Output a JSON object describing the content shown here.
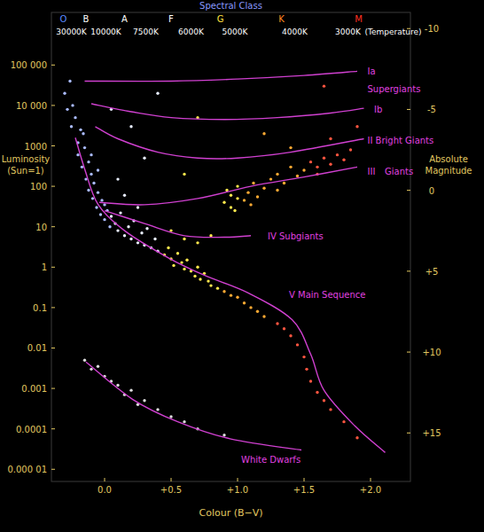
{
  "chart_data": {
    "type": "scatter",
    "x_label": "Colour (B−V)",
    "y_label": "Luminosity (Sun=1)",
    "y2_label": "Absolute Magnitude",
    "log": "y",
    "grid": false,
    "xlim": [
      -0.4,
      2.3
    ],
    "xticks": [
      {
        "value": 0,
        "label": "0.0"
      },
      {
        "value": 0.5,
        "label": "+0.5"
      },
      {
        "value": 1,
        "label": "+1.0"
      },
      {
        "value": 1.5,
        "label": "+1.5"
      },
      {
        "value": 2,
        "label": "+2.0"
      }
    ],
    "ylim": [
      5e-06,
      2000000
    ],
    "yticks": [
      {
        "value": 100000,
        "label": "100 000"
      },
      {
        "value": 10000,
        "label": "10 000"
      },
      1000,
      100,
      10,
      1,
      0.1,
      0.01,
      0.001,
      0.0001,
      {
        "value": 1e-05,
        "label": "0.000 01"
      }
    ],
    "y2lim": [
      18,
      -11
    ],
    "y2ticks": [
      -10,
      -5,
      0,
      {
        "value": 5,
        "label": "+5"
      },
      {
        "value": 10,
        "label": "+10"
      },
      {
        "value": 15,
        "label": "+15"
      }
    ],
    "top_axis": {
      "title": "Spectral Class",
      "classes": [
        {
          "value": -0.31,
          "label": "O",
          "color": "#5a8cff"
        },
        {
          "value": -0.14,
          "label": "B",
          "color": "#ffffff"
        },
        {
          "value": 0.15,
          "label": "A",
          "color": "#ffffff"
        },
        {
          "value": 0.5,
          "label": "F",
          "color": "#ffffff"
        },
        {
          "value": 0.87,
          "label": "G",
          "color": "#ffe040"
        },
        {
          "value": 1.33,
          "label": "K",
          "color": "#ff8a20"
        },
        {
          "value": 1.91,
          "label": "M",
          "color": "#ff3020"
        }
      ],
      "temperatures": [
        {
          "value": -0.25,
          "label": "30000K"
        },
        {
          "value": 0.01,
          "label": "10000K"
        },
        {
          "value": 0.31,
          "label": "7500K"
        },
        {
          "value": 0.65,
          "label": "6000K"
        },
        {
          "value": 0.98,
          "label": "5000K"
        },
        {
          "value": 1.43,
          "label": "4000K"
        },
        {
          "value": 1.83,
          "label": "3000K"
        }
      ],
      "note": {
        "value": 2.17,
        "label": "(Temperature)"
      }
    },
    "annotations": [
      {
        "text": "Supergiants",
        "x": 1.95,
        "y": 26000
      },
      {
        "text": "Giants",
        "x": 2.08,
        "y": 240
      }
    ],
    "series": [
      {
        "type": "scatter",
        "marker": "circle",
        "color": "#aabbff",
        "x": [
          -0.3,
          -0.28,
          -0.25,
          -0.22,
          -0.2,
          -0.2,
          -0.18,
          -0.17,
          -0.15,
          -0.14,
          -0.12,
          -0.12,
          -0.1,
          -0.09,
          -0.08,
          -0.06,
          -0.05,
          -0.03,
          -0.02,
          0.0,
          0.0,
          0.02,
          0.04,
          -0.16,
          -0.24,
          -0.1,
          -0.05,
          -0.26
        ],
        "values": [
          20000,
          8000,
          3000,
          5000,
          1200,
          600,
          2500,
          300,
          900,
          150,
          400,
          80,
          200,
          50,
          120,
          30,
          70,
          20,
          45,
          15,
          35,
          25,
          10,
          2000,
          10000,
          600,
          250,
          40000
        ]
      },
      {
        "type": "scatter",
        "marker": "circle",
        "color": "#e8eeff",
        "x": [
          0.05,
          0.08,
          0.1,
          0.12,
          0.15,
          0.18,
          0.2,
          0.22,
          0.25,
          0.28,
          0.3,
          0.32,
          0.35,
          0.38,
          0.4,
          0.15,
          0.25,
          0.1,
          0.3,
          0.2,
          0.05,
          0.4
        ],
        "values": [
          18,
          12,
          8,
          22,
          6,
          10,
          5,
          14,
          4,
          7,
          3.5,
          9,
          3,
          5,
          2.5,
          60,
          30,
          150,
          500,
          3000,
          8000,
          20000
        ]
      },
      {
        "type": "scatter",
        "marker": "circle",
        "color": "#ffe94d",
        "x": [
          0.45,
          0.48,
          0.5,
          0.52,
          0.55,
          0.58,
          0.6,
          0.62,
          0.65,
          0.68,
          0.7,
          0.72,
          0.75,
          0.78,
          0.8,
          0.85,
          0.5,
          0.6,
          0.7,
          0.8,
          0.9,
          0.95,
          0.95,
          1.0,
          0.92,
          1.0,
          0.98,
          0.6,
          0.7
        ],
        "values": [
          2,
          3,
          1.6,
          1.1,
          2.2,
          1.3,
          0.9,
          1.5,
          0.8,
          0.6,
          1.0,
          0.5,
          0.7,
          0.45,
          0.35,
          0.3,
          8,
          5,
          4,
          6,
          40,
          60,
          30,
          50,
          80,
          100,
          25,
          200,
          5000
        ]
      },
      {
        "type": "scatter",
        "marker": "circle",
        "color": "#ffaa33",
        "x": [
          0.9,
          0.95,
          1.0,
          1.05,
          1.1,
          1.15,
          1.2,
          1.05,
          1.08,
          1.1,
          1.12,
          1.15,
          1.2,
          1.25,
          1.3,
          1.3,
          1.35,
          1.4,
          1.45,
          1.5,
          1.2,
          1.4
        ],
        "values": [
          0.25,
          0.2,
          0.18,
          0.13,
          0.1,
          0.08,
          0.06,
          45,
          70,
          35,
          120,
          55,
          90,
          150,
          80,
          200,
          120,
          300,
          180,
          250,
          2000,
          900
        ]
      },
      {
        "type": "scatter",
        "marker": "circle",
        "color": "#ff5540",
        "x": [
          1.3,
          1.35,
          1.4,
          1.45,
          1.5,
          1.52,
          1.55,
          1.6,
          1.65,
          1.7,
          1.8,
          1.9,
          1.55,
          1.6,
          1.65,
          1.7,
          1.75,
          1.8,
          1.85,
          1.6,
          1.7,
          1.9,
          1.65
        ],
        "values": [
          0.04,
          0.03,
          0.02,
          0.012,
          0.006,
          0.003,
          0.0015,
          0.0008,
          0.0005,
          0.0003,
          0.00015,
          6e-05,
          400,
          300,
          500,
          350,
          600,
          450,
          800,
          200,
          1500,
          3000,
          30000
        ]
      },
      {
        "type": "scatter",
        "marker": "circle",
        "color": "#dddddd",
        "x": [
          -0.15,
          -0.1,
          -0.05,
          0.0,
          0.05,
          0.1,
          0.15,
          0.2,
          0.25,
          0.3,
          0.4,
          0.5,
          0.6,
          0.7,
          0.9
        ],
        "values": [
          0.005,
          0.003,
          0.0035,
          0.002,
          0.0015,
          0.0012,
          0.0007,
          0.0009,
          0.0004,
          0.0005,
          0.0003,
          0.0002,
          0.00015,
          0.0001,
          7e-05
        ]
      },
      {
        "type": "line",
        "line_style": "solid",
        "color": "#d040d0",
        "name": "Ia",
        "label_at": [
          1.95,
          70000
        ],
        "x": [
          -0.15,
          0.5,
          1.0,
          1.5,
          1.9
        ],
        "values": [
          40000,
          40000,
          45000,
          55000,
          70000
        ]
      },
      {
        "type": "line",
        "line_style": "solid",
        "color": "#d040d0",
        "name": "Ib",
        "label_at": [
          2.0,
          8000
        ],
        "x": [
          -0.1,
          0.2,
          0.5,
          0.9,
          1.3,
          1.7,
          1.95
        ],
        "values": [
          11000,
          7000,
          5000,
          4500,
          5000,
          6500,
          8500
        ]
      },
      {
        "type": "line",
        "line_style": "solid",
        "color": "#d040d0",
        "name": "II Bright Giants",
        "label_at": [
          1.95,
          1400
        ],
        "x": [
          -0.07,
          0.1,
          0.4,
          0.7,
          1.0,
          1.4,
          1.95
        ],
        "values": [
          3000,
          1500,
          700,
          500,
          500,
          700,
          1500
        ]
      },
      {
        "type": "line",
        "line_style": "solid",
        "color": "#d040d0",
        "name": "III",
        "label_at": [
          1.95,
          240
        ],
        "x": [
          -0.04,
          0.3,
          0.7,
          1.1,
          1.5,
          1.9
        ],
        "values": [
          40,
          35,
          50,
          100,
          170,
          300
        ]
      },
      {
        "type": "line",
        "line_style": "solid",
        "color": "#d040d0",
        "name": "IV Subgiants",
        "label_at": [
          1.2,
          6
        ],
        "x": [
          0.0,
          0.3,
          0.6,
          0.9,
          1.1
        ],
        "values": [
          25,
          12,
          6,
          5.5,
          6
        ]
      },
      {
        "type": "line",
        "line_style": "solid",
        "color": "#d040d0",
        "name": "V Main Sequence",
        "label_at": [
          1.36,
          0.21
        ],
        "x": [
          -0.22,
          -0.15,
          -0.05,
          0.15,
          0.48,
          0.75,
          1.08,
          1.41,
          1.55,
          1.65,
          1.88,
          2.11
        ],
        "values": [
          1600,
          270,
          36,
          8,
          1.7,
          0.63,
          0.23,
          0.05,
          0.007,
          0.0009,
          0.00012,
          2.6e-05
        ]
      },
      {
        "type": "line",
        "line_style": "solid",
        "color": "#d040d0",
        "name": "White Dwarfs",
        "label_at": [
          1.0,
          1.75e-05
        ],
        "x": [
          -0.14,
          0.21,
          0.55,
          0.95,
          1.48
        ],
        "values": [
          0.0045,
          0.00054,
          0.00015,
          5.6e-05,
          3e-05
        ]
      }
    ]
  }
}
